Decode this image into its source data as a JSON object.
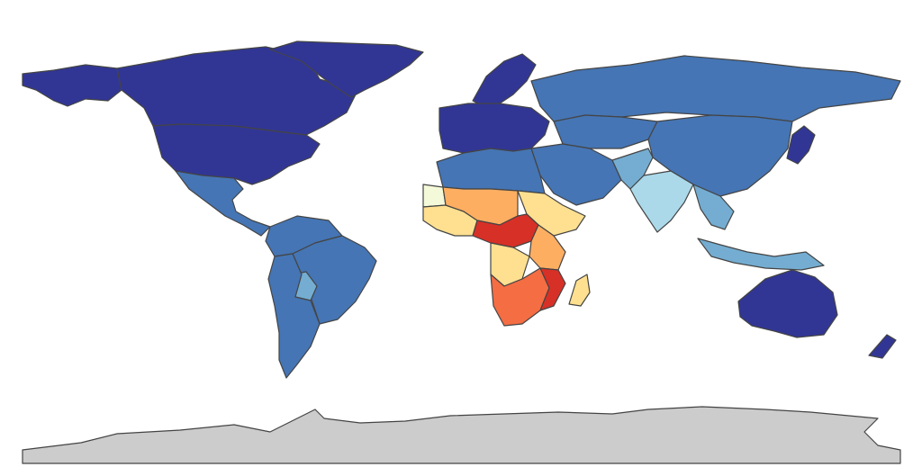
{
  "map": {
    "type": "choropleth",
    "projection": "equirectangular",
    "ocean_color": "#ffffff",
    "border_color": "#444444",
    "no_data_color": "#cccccc",
    "palette": [
      "#313695",
      "#4575b4",
      "#74add1",
      "#abd9e9",
      "#e0f3f8",
      "#fee090",
      "#fdae61",
      "#f46d43",
      "#d73027",
      "#a50026"
    ],
    "regions": [
      {
        "id": "canada",
        "level": "darkblue"
      },
      {
        "id": "greenland",
        "level": "darkblue"
      },
      {
        "id": "usa",
        "level": "darkblue"
      },
      {
        "id": "alaska",
        "level": "darkblue"
      },
      {
        "id": "mexico-central-america",
        "level": "blue"
      },
      {
        "id": "south-america",
        "level": "blue"
      },
      {
        "id": "brazil",
        "level": "blue"
      },
      {
        "id": "bolivia",
        "level": "lightblue"
      },
      {
        "id": "europe",
        "level": "darkblue"
      },
      {
        "id": "scandinavia",
        "level": "darkblue"
      },
      {
        "id": "russia",
        "level": "blue"
      },
      {
        "id": "china",
        "level": "blue"
      },
      {
        "id": "middle-east",
        "level": "blue"
      },
      {
        "id": "central-asia",
        "level": "blue"
      },
      {
        "id": "india",
        "level": "paleblue"
      },
      {
        "id": "pakistan-afghanistan",
        "level": "lightblue"
      },
      {
        "id": "southeast-asia",
        "level": "lightblue"
      },
      {
        "id": "indonesia",
        "level": "lightblue"
      },
      {
        "id": "japan",
        "level": "darkblue"
      },
      {
        "id": "north-africa",
        "level": "blue"
      },
      {
        "id": "western-sahara",
        "level": "palecream"
      },
      {
        "id": "west-africa",
        "level": "yellow"
      },
      {
        "id": "sahel",
        "level": "orange"
      },
      {
        "id": "horn-of-africa",
        "level": "yellow"
      },
      {
        "id": "central-africa",
        "level": "red"
      },
      {
        "id": "east-africa",
        "level": "orange"
      },
      {
        "id": "angola",
        "level": "yellow"
      },
      {
        "id": "southern-africa",
        "level": "redorange"
      },
      {
        "id": "mozambique",
        "level": "red"
      },
      {
        "id": "madagascar",
        "level": "yellow"
      },
      {
        "id": "australia",
        "level": "darkblue"
      },
      {
        "id": "new-zealand",
        "level": "darkblue"
      },
      {
        "id": "antarctica",
        "level": "nodata"
      }
    ],
    "level_colors": {
      "darkblue": "#313695",
      "blue": "#4575b4",
      "midblue": "#4f7fbd",
      "lightblue": "#74add1",
      "paleblue": "#abd9e9",
      "palecream": "#f4f9d9",
      "yellow": "#fee090",
      "orange": "#fdae61",
      "redorange": "#f46d43",
      "red": "#d73027",
      "nodata": "#cccccc"
    }
  }
}
